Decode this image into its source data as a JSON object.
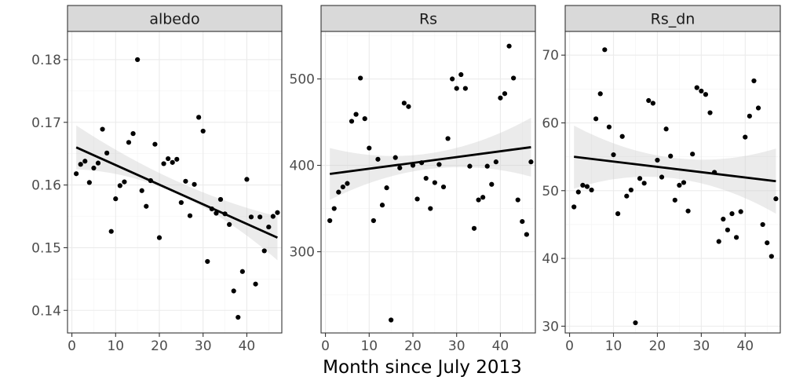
{
  "chart_data": {
    "type": "scatter",
    "xlabel": "Month since July 2013",
    "ylabel": "",
    "facets": [
      {
        "name": "albedo",
        "xlim": [
          -1,
          48
        ],
        "xticks": [
          0,
          10,
          20,
          30,
          40
        ],
        "ylim": [
          0.1364,
          0.1845
        ],
        "yticks": [
          0.14,
          0.15,
          0.16,
          0.17,
          0.18
        ],
        "ytick_labels": [
          "0.14",
          "0.15",
          "0.16",
          "0.17",
          "0.18"
        ],
        "trend": {
          "x": [
            1,
            47
          ],
          "y": [
            0.166,
            0.1516
          ]
        },
        "band": {
          "x": [
            1,
            24,
            47
          ],
          "lower": [
            0.1625,
            0.1586,
            0.148
          ],
          "upper": [
            0.1695,
            0.1606,
            0.155
          ]
        },
        "points": [
          [
            1,
            0.1618
          ],
          [
            2,
            0.1633
          ],
          [
            3,
            0.1638
          ],
          [
            4,
            0.1604
          ],
          [
            5,
            0.1627
          ],
          [
            6,
            0.1635
          ],
          [
            7,
            0.1689
          ],
          [
            8,
            0.1651
          ],
          [
            9,
            0.1526
          ],
          [
            10,
            0.1578
          ],
          [
            11,
            0.1599
          ],
          [
            12,
            0.1605
          ],
          [
            13,
            0.1668
          ],
          [
            14,
            0.1682
          ],
          [
            15,
            0.18
          ],
          [
            16,
            0.1591
          ],
          [
            17,
            0.1566
          ],
          [
            18,
            0.1607
          ],
          [
            19,
            0.1665
          ],
          [
            20,
            0.1516
          ],
          [
            21,
            0.1634
          ],
          [
            22,
            0.1642
          ],
          [
            23,
            0.1636
          ],
          [
            24,
            0.1641
          ],
          [
            25,
            0.1572
          ],
          [
            26,
            0.1606
          ],
          [
            27,
            0.1551
          ],
          [
            28,
            0.1601
          ],
          [
            29,
            0.1708
          ],
          [
            30,
            0.1686
          ],
          [
            31,
            0.1478
          ],
          [
            32,
            0.1562
          ],
          [
            33,
            0.1555
          ],
          [
            34,
            0.1577
          ],
          [
            35,
            0.1554
          ],
          [
            36,
            0.1537
          ],
          [
            37,
            0.1431
          ],
          [
            38,
            0.1389
          ],
          [
            39,
            0.1462
          ],
          [
            40,
            0.1609
          ],
          [
            41,
            0.1549
          ],
          [
            42,
            0.1442
          ],
          [
            43,
            0.1549
          ],
          [
            44,
            0.1495
          ],
          [
            45,
            0.1533
          ],
          [
            46,
            0.155
          ],
          [
            47,
            0.1556
          ]
        ]
      },
      {
        "name": "Rs",
        "xlim": [
          -1,
          48
        ],
        "xticks": [
          0,
          10,
          20,
          30,
          40
        ],
        "ylim": [
          206,
          555
        ],
        "yticks": [
          300,
          400,
          500
        ],
        "ytick_labels": [
          "300",
          "400",
          "500"
        ],
        "trend": {
          "x": [
            1,
            47
          ],
          "y": [
            390,
            421
          ]
        },
        "band": {
          "x": [
            1,
            24,
            47
          ],
          "lower": [
            360,
            396,
            387
          ],
          "upper": [
            420,
            414,
            455
          ]
        },
        "points": [
          [
            1,
            336
          ],
          [
            2,
            350
          ],
          [
            3,
            369
          ],
          [
            4,
            375
          ],
          [
            5,
            379
          ],
          [
            6,
            451
          ],
          [
            7,
            459
          ],
          [
            8,
            501
          ],
          [
            9,
            454
          ],
          [
            10,
            420
          ],
          [
            11,
            336
          ],
          [
            12,
            407
          ],
          [
            13,
            354
          ],
          [
            14,
            374
          ],
          [
            15,
            221
          ],
          [
            16,
            409
          ],
          [
            17,
            397
          ],
          [
            18,
            472
          ],
          [
            19,
            468
          ],
          [
            20,
            400
          ],
          [
            21,
            361
          ],
          [
            22,
            403
          ],
          [
            23,
            385
          ],
          [
            24,
            350
          ],
          [
            25,
            380
          ],
          [
            26,
            401
          ],
          [
            27,
            375
          ],
          [
            28,
            431
          ],
          [
            29,
            500
          ],
          [
            30,
            489
          ],
          [
            31,
            505
          ],
          [
            32,
            489
          ],
          [
            33,
            399
          ],
          [
            34,
            327
          ],
          [
            35,
            360
          ],
          [
            36,
            363
          ],
          [
            37,
            399
          ],
          [
            38,
            378
          ],
          [
            39,
            404
          ],
          [
            40,
            478
          ],
          [
            41,
            483
          ],
          [
            42,
            538
          ],
          [
            43,
            501
          ],
          [
            44,
            360
          ],
          [
            45,
            335
          ],
          [
            46,
            320
          ],
          [
            47,
            404
          ]
        ]
      },
      {
        "name": "Rs_dn",
        "xlim": [
          -1,
          48
        ],
        "xticks": [
          0,
          10,
          20,
          30,
          40
        ],
        "ylim": [
          29,
          73.5
        ],
        "yticks": [
          30,
          40,
          50,
          60,
          70
        ],
        "ytick_labels": [
          "30",
          "40",
          "50",
          "60",
          "70"
        ],
        "trend": {
          "x": [
            1,
            47
          ],
          "y": [
            55,
            51.4
          ]
        },
        "band": {
          "x": [
            1,
            24,
            47
          ],
          "lower": [
            50.3,
            51.8,
            46.6
          ],
          "upper": [
            59.6,
            54.8,
            56.2
          ]
        },
        "points": [
          [
            1,
            47.6
          ],
          [
            2,
            49.8
          ],
          [
            3,
            50.8
          ],
          [
            4,
            50.6
          ],
          [
            5,
            50.1
          ],
          [
            6,
            60.6
          ],
          [
            7,
            64.3
          ],
          [
            8,
            70.8
          ],
          [
            9,
            59.4
          ],
          [
            10,
            55.3
          ],
          [
            11,
            46.6
          ],
          [
            12,
            58
          ],
          [
            13,
            49.2
          ],
          [
            14,
            50.1
          ],
          [
            15,
            30.5
          ],
          [
            16,
            51.8
          ],
          [
            17,
            51.1
          ],
          [
            18,
            63.3
          ],
          [
            19,
            62.9
          ],
          [
            20,
            54.5
          ],
          [
            21,
            52
          ],
          [
            22,
            59.1
          ],
          [
            23,
            55.1
          ],
          [
            24,
            48.6
          ],
          [
            25,
            50.8
          ],
          [
            26,
            51.2
          ],
          [
            27,
            47
          ],
          [
            28,
            55.4
          ],
          [
            29,
            65.2
          ],
          [
            30,
            64.7
          ],
          [
            31,
            64.2
          ],
          [
            32,
            61.5
          ],
          [
            33,
            52.7
          ],
          [
            34,
            42.5
          ],
          [
            35,
            45.8
          ],
          [
            36,
            44.2
          ],
          [
            37,
            46.6
          ],
          [
            38,
            43.1
          ],
          [
            39,
            46.9
          ],
          [
            40,
            57.9
          ],
          [
            41,
            61
          ],
          [
            42,
            66.2
          ],
          [
            43,
            62.2
          ],
          [
            44,
            45
          ],
          [
            45,
            42.3
          ],
          [
            46,
            40.3
          ],
          [
            47,
            48.8
          ]
        ]
      }
    ]
  }
}
